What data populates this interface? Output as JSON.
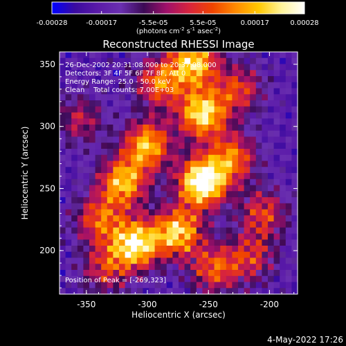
{
  "chart_data": {
    "type": "heatmap",
    "title": "Reconstructed RHESSI Image",
    "colorbar": {
      "ticks": [
        "-0.00028",
        "-0.00017",
        "-5.5e-05",
        "5.5e-05",
        "0.00017",
        "0.00028"
      ],
      "range": [
        -0.00028,
        0.00028
      ],
      "unit_main": "(photons cm",
      "unit_exp1": "-2",
      "unit_mid": " s",
      "unit_exp2": "-1",
      "unit_mid2": " asec",
      "unit_exp3": "-2",
      "unit_end": ")"
    },
    "colors": [
      "#0000ff",
      "#3a0aa0",
      "#5a1aa8",
      "#6a2fb0",
      "#3c0a55",
      "#a0106a",
      "#d8243c",
      "#f04400",
      "#ff8a00",
      "#ffc800",
      "#fff49a",
      "#ffffff"
    ],
    "xlabel": "Heliocentric X (arcsec)",
    "ylabel": "Heliocentric Y (arcsec)",
    "xlim": [
      -372,
      -177
    ],
    "ylim": [
      165,
      360
    ],
    "xticks": [
      "-350",
      "-300",
      "-250",
      "-200"
    ],
    "yticks": [
      "200",
      "250",
      "300",
      "350"
    ],
    "annotations": [
      "26-Dec-2002 20:31:08.000 to 20:37:08.000",
      "Detectors: 3F 4F 5F 6F 7F 8F, Att 0",
      "Energy Range: 25.0 - 50.0 keV",
      "Clean    Total counts: 7.00E+03"
    ],
    "peak_label": "Position of Peak = [-269,323]",
    "peak": {
      "x": -269,
      "y": 323
    },
    "sources": [
      {
        "x": -255,
        "y": 255,
        "amp": 1.0
      },
      {
        "x": -310,
        "y": 205,
        "amp": 0.85
      },
      {
        "x": -275,
        "y": 215,
        "amp": 0.75
      },
      {
        "x": -255,
        "y": 310,
        "amp": 0.8
      },
      {
        "x": -320,
        "y": 255,
        "amp": 0.7
      },
      {
        "x": -300,
        "y": 285,
        "amp": 0.7
      },
      {
        "x": -262,
        "y": 352,
        "amp": 0.75
      },
      {
        "x": -230,
        "y": 275,
        "amp": 0.55
      },
      {
        "x": -340,
        "y": 225,
        "amp": 0.5
      },
      {
        "x": -245,
        "y": 185,
        "amp": 0.5
      },
      {
        "x": -205,
        "y": 230,
        "amp": 0.45
      },
      {
        "x": -355,
        "y": 305,
        "amp": 0.35
      },
      {
        "x": -225,
        "y": 330,
        "amp": 0.45
      },
      {
        "x": -290,
        "y": 335,
        "amp": 0.55
      },
      {
        "x": -335,
        "y": 185,
        "amp": 0.4
      },
      {
        "x": -215,
        "y": 195,
        "amp": 0.4
      }
    ]
  },
  "footer": {
    "date": "4-May-2022 17:26"
  }
}
